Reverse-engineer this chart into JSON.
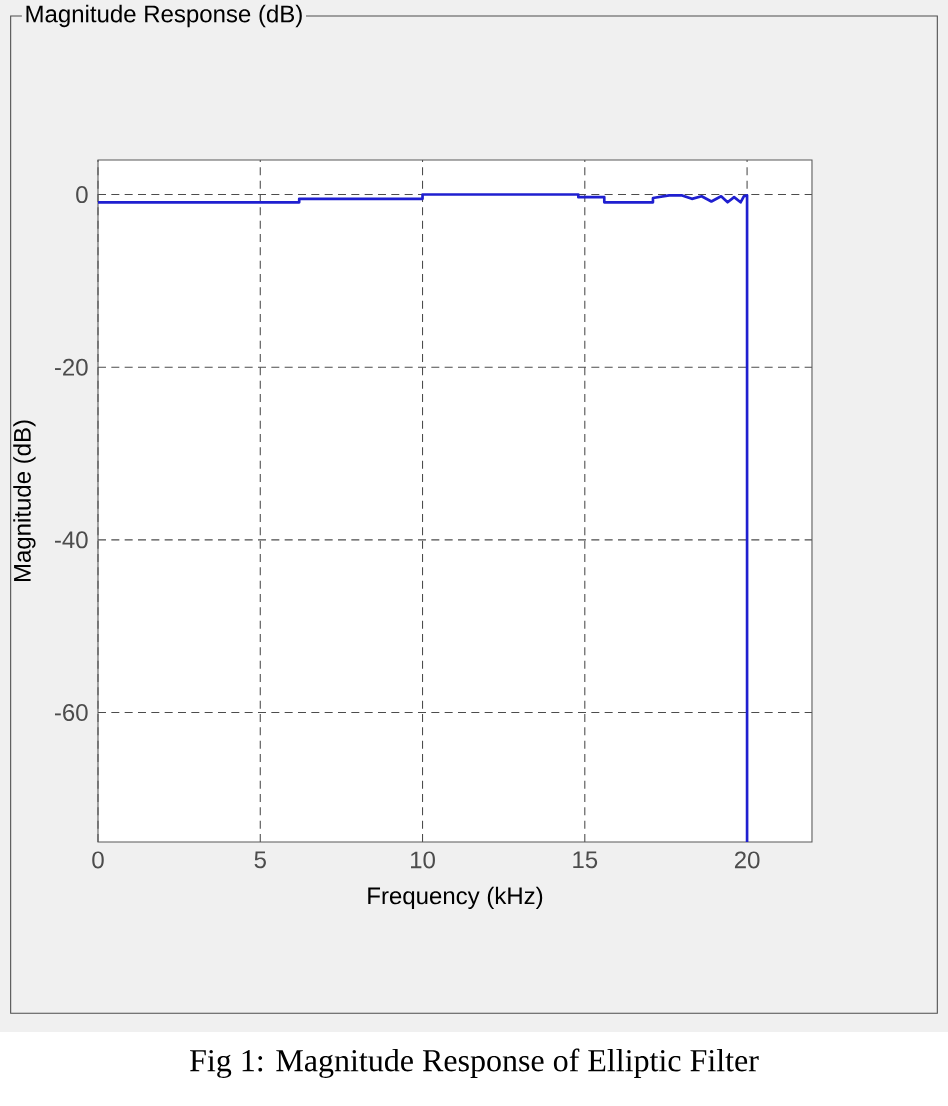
{
  "chart_data": {
    "type": "line",
    "title": "Magnitude Response (dB)",
    "xlabel": "Frequency (kHz)",
    "ylabel": "Magnitude (dB)",
    "annotations": [
      "Fig 1: Magnitude Response of Elliptic Filter"
    ],
    "x": [
      0,
      6.2,
      6.2,
      10,
      10,
      14.8,
      14.8,
      15.6,
      15.6,
      17.1,
      17.1,
      17.6,
      18.0,
      18.3,
      18.6,
      18.9,
      19.2,
      19.4,
      19.6,
      19.8,
      19.9,
      20,
      20
    ],
    "series": [
      {
        "color": "#1f1fd0",
        "values": [
          -0.9,
          -0.9,
          -0.5,
          -0.5,
          0,
          0,
          -0.3,
          -0.3,
          -0.9,
          -0.9,
          -0.4,
          -0.1,
          -0.1,
          -0.5,
          -0.2,
          -0.8,
          -0.2,
          -0.9,
          -0.3,
          -0.9,
          -0.2,
          -0.1,
          -75
        ]
      }
    ],
    "xlim": [
      0,
      22
    ],
    "ylim": [
      -75,
      4
    ],
    "xticks": [
      0,
      5,
      10,
      15,
      20
    ],
    "yticks": [
      0,
      -20,
      -40,
      -60
    ],
    "grid": true,
    "line_style": "solid",
    "marker": "none"
  }
}
